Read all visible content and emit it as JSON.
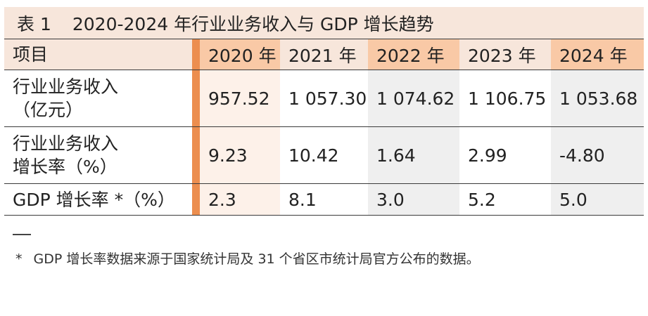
{
  "table_title": {
    "label": "表 1",
    "text": "2020-2024 年行业业务收入与 GDP 增长趋势"
  },
  "header": {
    "item": "项目",
    "years": [
      "2020 年",
      "2021 年",
      "2022 年",
      "2023 年",
      "2024 年"
    ]
  },
  "rows": [
    {
      "label_lines": [
        "行业业务收入",
        "（亿元）"
      ],
      "values": [
        "957.52",
        "1 057.30",
        "1 074.62",
        "1 106.75",
        "1 053.68"
      ]
    },
    {
      "label_lines": [
        "行业业务收入",
        "增长率（%）"
      ],
      "values": [
        "9.23",
        "10.42",
        "1.64",
        "2.99",
        "-4.80"
      ]
    },
    {
      "label_lines": [
        "GDP 增长率 *（%）"
      ],
      "values": [
        "2.3",
        "8.1",
        "3.0",
        "5.2",
        "5.0"
      ]
    }
  ],
  "footnote": {
    "marker": "*",
    "text": "GDP 增长率数据来源于国家统计局及 31 个省区市统计局官方公布的数据。"
  },
  "colors": {
    "accent_bar": "#ec8e4f",
    "header_light": "#f7e6db",
    "header_dark": "#f9c9a6",
    "cell_2020": "#fdf1e9",
    "cell_gray": "#efefef"
  }
}
